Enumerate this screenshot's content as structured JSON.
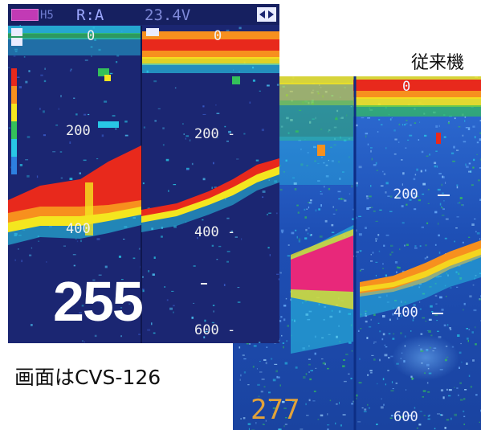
{
  "caption_compare": "従来機",
  "caption_product": "画面はCVS-126",
  "cvs": {
    "status_mode": "R:A",
    "status_voltage": "23.4V",
    "depth_left": {
      "d0": "0",
      "d200": "200",
      "d400": "400"
    },
    "depth_right": {
      "d0": "0",
      "d200": "200 -",
      "d400": "400 -",
      "d600": "600 -"
    },
    "depth_readout": "255"
  },
  "legacy": {
    "depth_labels": {
      "d0": "0",
      "d200": "200",
      "d400": "400",
      "d600": "600"
    },
    "depth_readout": "277"
  },
  "colors": {
    "sea_dark": "#1b2672",
    "sea_legacy": "#1e4fb5",
    "echo_red": "#e8291c",
    "echo_orange": "#f7901e",
    "echo_yellow": "#f4e61f",
    "echo_green": "#34c05a",
    "echo_cyan": "#28c7e6",
    "echo_magenta": "#e8287a"
  }
}
